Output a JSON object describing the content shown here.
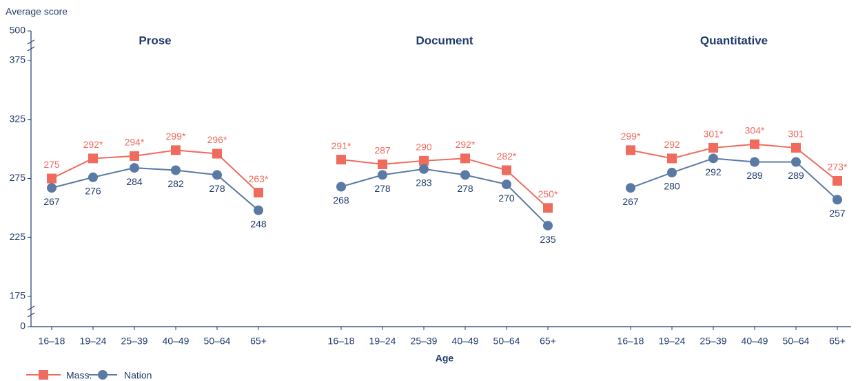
{
  "chart_data": {
    "type": "line",
    "ylabel": "Average score",
    "xlabel": "Age",
    "ylim": [
      175,
      375
    ],
    "yticks": [
      0,
      175,
      225,
      275,
      325,
      375,
      500
    ],
    "axis_break": true,
    "panels": [
      {
        "title": "Prose",
        "categories": [
          "16–18",
          "19–24",
          "25–39",
          "40–49",
          "50–64",
          "65+"
        ],
        "series": [
          {
            "name": "Mass.",
            "color": "#ef6b5e",
            "values": [
              275,
              292,
              294,
              299,
              296,
              263
            ],
            "value_labels": [
              "275",
              "292*",
              "294*",
              "299*",
              "296*",
              "263*"
            ]
          },
          {
            "name": "Nation",
            "color": "#5a79a5",
            "values": [
              267,
              276,
              284,
              282,
              278,
              248
            ]
          }
        ]
      },
      {
        "title": "Document",
        "categories": [
          "16–18",
          "19–24",
          "25–39",
          "40–49",
          "50–64",
          "65+"
        ],
        "series": [
          {
            "name": "Mass.",
            "color": "#ef6b5e",
            "values": [
              291,
              287,
              290,
              292,
              282,
              250
            ],
            "value_labels": [
              "291*",
              "287",
              "290",
              "292*",
              "282*",
              "250*"
            ]
          },
          {
            "name": "Nation",
            "color": "#5a79a5",
            "values": [
              268,
              278,
              283,
              278,
              270,
              235
            ]
          }
        ]
      },
      {
        "title": "Quantitative",
        "categories": [
          "16–18",
          "19–24",
          "25–39",
          "40–49",
          "50–64",
          "65+"
        ],
        "series": [
          {
            "name": "Mass.",
            "color": "#ef6b5e",
            "values": [
              299,
              292,
              301,
              304,
              301,
              273
            ],
            "value_labels": [
              "299*",
              "292",
              "301*",
              "304*",
              "301",
              "273*"
            ]
          },
          {
            "name": "Nation",
            "color": "#5a79a5",
            "values": [
              267,
              280,
              292,
              289,
              289,
              257
            ]
          }
        ]
      }
    ]
  }
}
